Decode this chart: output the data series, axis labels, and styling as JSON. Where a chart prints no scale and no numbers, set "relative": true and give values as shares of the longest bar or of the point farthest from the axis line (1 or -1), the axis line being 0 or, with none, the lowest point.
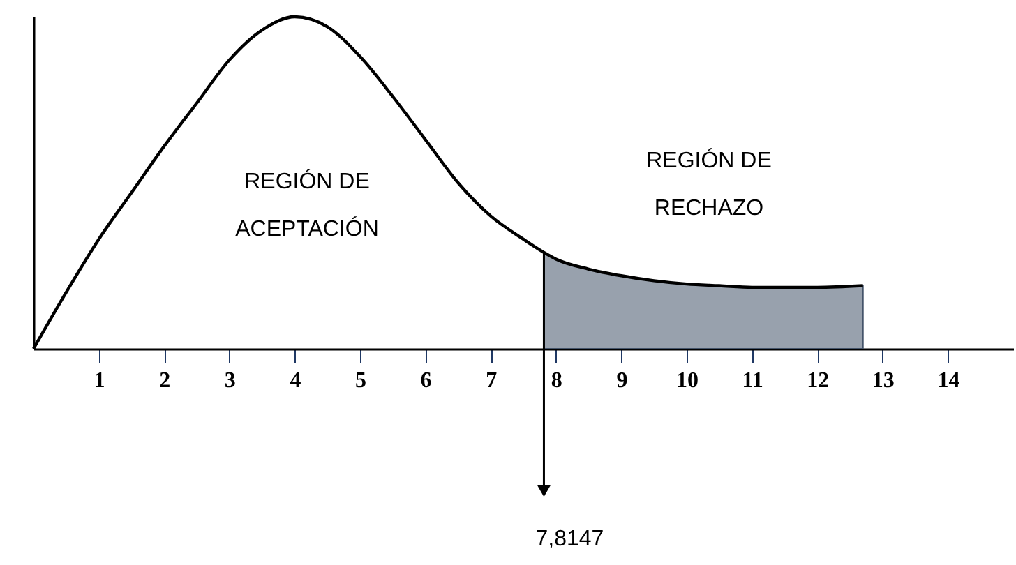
{
  "chart_data": {
    "type": "line",
    "relative": true,
    "xlim": [
      0,
      15
    ],
    "xticks": [
      1,
      2,
      3,
      4,
      5,
      6,
      7,
      8,
      9,
      10,
      11,
      12,
      13,
      14
    ],
    "tick_labels": "x",
    "grid": false,
    "series": [
      {
        "color": "#000000",
        "x": [
          0,
          0.5,
          1,
          1.5,
          2,
          2.5,
          3,
          3.5,
          4,
          4.5,
          5,
          5.5,
          6,
          6.5,
          7,
          7.5,
          7.8147,
          8,
          8.5,
          9,
          9.5,
          10,
          10.5,
          11,
          11.5,
          12,
          12.7
        ],
        "values": [
          0,
          0.17,
          0.33,
          0.47,
          0.61,
          0.74,
          0.87,
          0.96,
          1,
          0.97,
          0.88,
          0.76,
          0.63,
          0.5,
          0.4,
          0.33,
          0.29,
          0.27,
          0.24,
          0.22,
          0.205,
          0.195,
          0.19,
          0.185,
          0.185,
          0.185,
          0.19
        ]
      },
      {
        "type": "area",
        "color": "#44546a",
        "x": [
          7.8147,
          8,
          8.5,
          9,
          9.5,
          10,
          10.5,
          11,
          11.5,
          12,
          12.7
        ],
        "values": [
          0.29,
          0.27,
          0.24,
          0.22,
          0.205,
          0.195,
          0.19,
          0.185,
          0.185,
          0.185,
          0.19
        ]
      }
    ],
    "ref_lines": [
      {
        "axis": "x",
        "value": 7.8147,
        "label": "7,8147",
        "color": "#000000"
      }
    ],
    "annotations": [
      "REGIÓN DE ACEPTACIÓN",
      "REGIÓN DE RECHAZO"
    ]
  }
}
